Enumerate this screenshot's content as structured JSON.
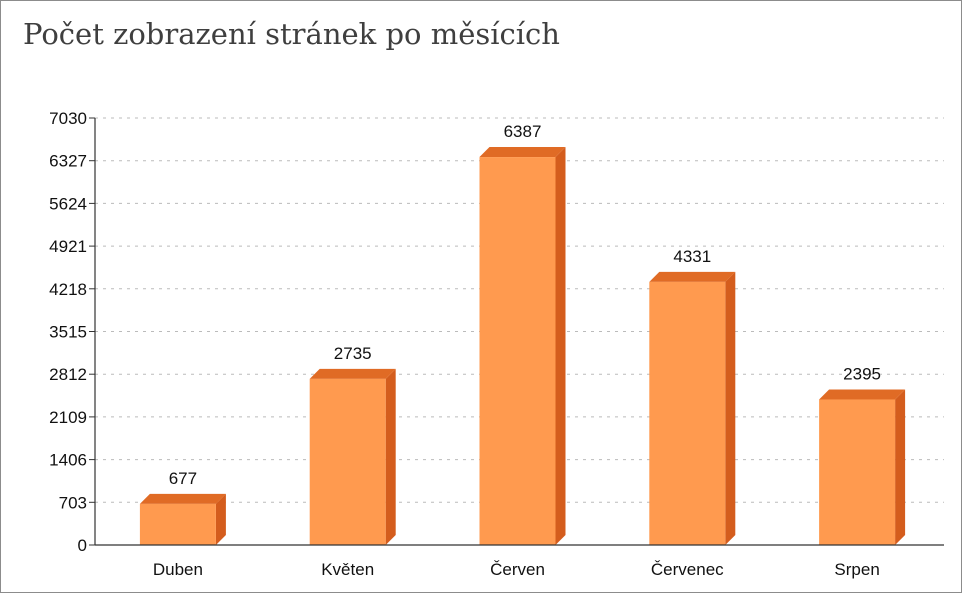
{
  "chart_data": {
    "type": "bar",
    "title": "Počet zobrazení stránek po měsících",
    "xlabel": "",
    "ylabel": "",
    "categories": [
      "Duben",
      "Květen",
      "Červen",
      "Červenec",
      "Srpen"
    ],
    "values": [
      677,
      2735,
      6387,
      4331,
      2395
    ],
    "value_labels": [
      "677",
      "2735",
      "6387",
      "4331",
      "2395"
    ],
    "y_ticks": [
      0,
      703,
      1406,
      2109,
      2812,
      3515,
      4218,
      4921,
      5624,
      6327,
      7030
    ],
    "y_tick_labels": [
      "0",
      "703",
      "1406",
      "2109",
      "2812",
      "3515",
      "4218",
      "4921",
      "5624",
      "6327",
      "7030"
    ],
    "ylim": [
      0,
      7030
    ],
    "grid": true,
    "legend": "none",
    "colors": {
      "bar_front": "#ff9a4f",
      "bar_side": "#d45d1d",
      "bar_top": "#e06b25",
      "grid": "#bbbbbb",
      "axis": "#333333"
    }
  }
}
